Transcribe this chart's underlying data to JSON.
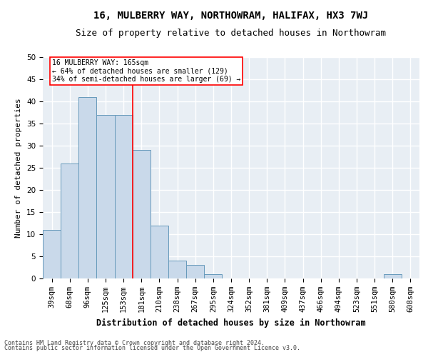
{
  "title": "16, MULBERRY WAY, NORTHOWRAM, HALIFAX, HX3 7WJ",
  "subtitle": "Size of property relative to detached houses in Northowram",
  "xlabel": "Distribution of detached houses by size in Northowram",
  "ylabel": "Number of detached properties",
  "footnote1": "Contains HM Land Registry data © Crown copyright and database right 2024.",
  "footnote2": "Contains public sector information licensed under the Open Government Licence v3.0.",
  "categories": [
    "39sqm",
    "68sqm",
    "96sqm",
    "125sqm",
    "153sqm",
    "181sqm",
    "210sqm",
    "238sqm",
    "267sqm",
    "295sqm",
    "324sqm",
    "352sqm",
    "381sqm",
    "409sqm",
    "437sqm",
    "466sqm",
    "494sqm",
    "523sqm",
    "551sqm",
    "580sqm",
    "608sqm"
  ],
  "values": [
    11,
    26,
    41,
    37,
    37,
    29,
    12,
    4,
    3,
    1,
    0,
    0,
    0,
    0,
    0,
    0,
    0,
    0,
    0,
    1,
    0
  ],
  "bar_color": "#c9d9ea",
  "bar_edge_color": "#6699bb",
  "property_line_x": 4.5,
  "property_label": "16 MULBERRY WAY: 165sqm",
  "annotation_line1": "← 64% of detached houses are smaller (129)",
  "annotation_line2": "34% of semi-detached houses are larger (69) →",
  "annotation_box_color": "white",
  "annotation_box_edge": "red",
  "vline_color": "red",
  "ylim": [
    0,
    50
  ],
  "yticks": [
    0,
    5,
    10,
    15,
    20,
    25,
    30,
    35,
    40,
    45,
    50
  ],
  "background_color": "#e8eef4",
  "grid_color": "white",
  "title_fontsize": 10,
  "subtitle_fontsize": 9,
  "axis_label_fontsize": 8.5,
  "tick_fontsize": 7.5,
  "ylabel_fontsize": 8
}
